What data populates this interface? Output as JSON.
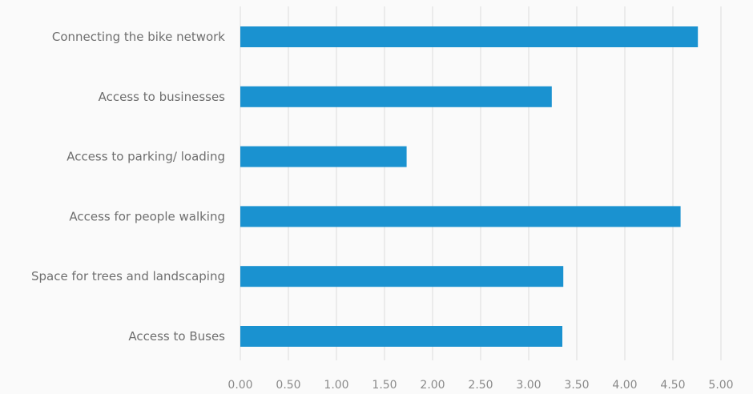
{
  "chart_data": {
    "type": "bar",
    "orientation": "horizontal",
    "categories": [
      "Connecting the bike network",
      "Access to businesses",
      "Access to parking/ loading",
      "Access for people walking",
      "Space for trees and landscaping",
      "Access to Buses"
    ],
    "values": [
      4.76,
      3.24,
      1.73,
      4.58,
      3.36,
      3.35
    ],
    "xlim": [
      0,
      5
    ],
    "x_ticks": [
      "0.00",
      "0.50",
      "1.00",
      "1.50",
      "2.00",
      "2.50",
      "3.00",
      "3.50",
      "4.00",
      "4.50",
      "5.00"
    ],
    "x_tick_values": [
      0,
      0.5,
      1,
      1.5,
      2,
      2.5,
      3,
      3.5,
      4,
      4.5,
      5
    ],
    "grid": true,
    "bar_color": "#1a92d0",
    "title": "",
    "xlabel": "",
    "ylabel": ""
  }
}
